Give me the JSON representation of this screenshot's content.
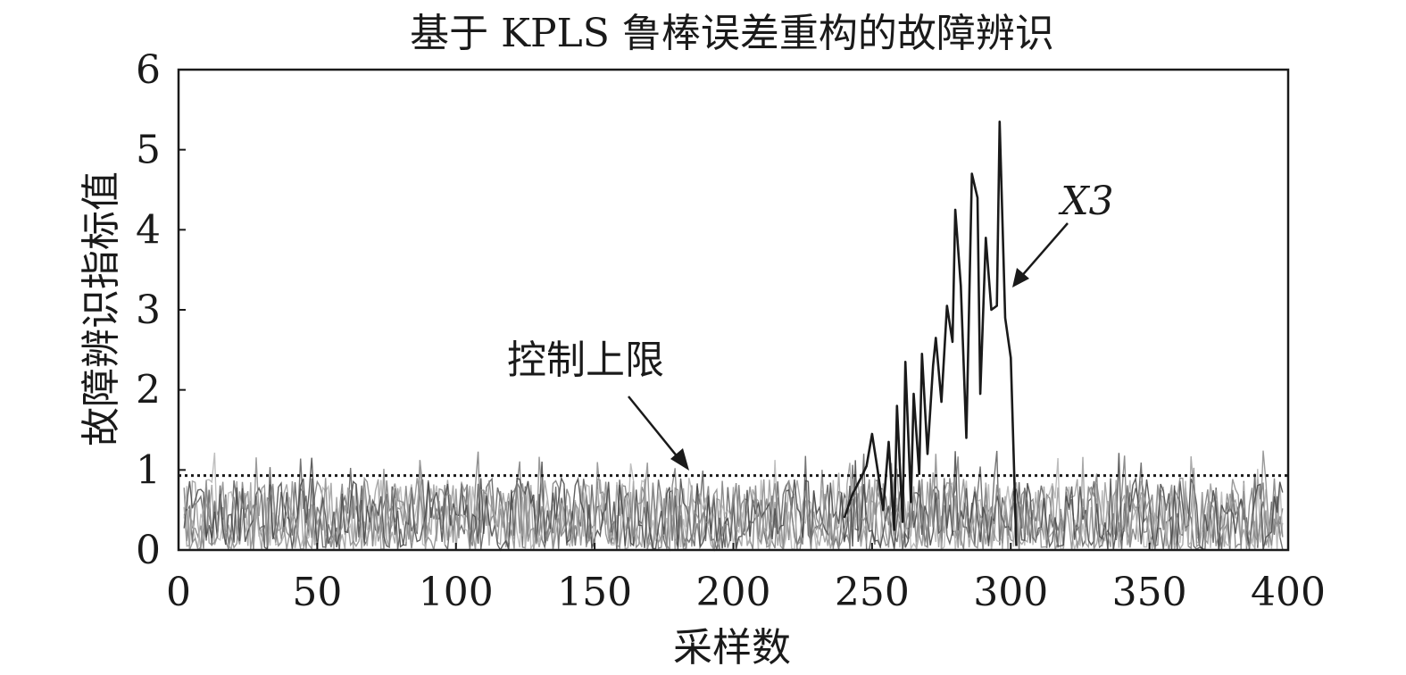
{
  "chart_data": {
    "type": "line",
    "title": "基于 KPLS 鲁棒误差重构的故障辨识",
    "xlabel": "采样数",
    "ylabel": "故障辨识指标值",
    "xlim": [
      0,
      400
    ],
    "ylim": [
      0,
      6
    ],
    "xticks": [
      "0",
      "50",
      "100",
      "150",
      "200",
      "250",
      "300",
      "350",
      "400"
    ],
    "yticks": [
      "0",
      "1",
      "2",
      "3",
      "4",
      "5",
      "6"
    ],
    "grid": false,
    "control_limit": {
      "label": "控制上限",
      "value": 0.93
    },
    "highlighted_series": {
      "label": "X3",
      "color": "#1a1a1a",
      "x": [
        240,
        243,
        246,
        248,
        250,
        252,
        254,
        256,
        258,
        259,
        261,
        262,
        264,
        265,
        267,
        268,
        270,
        272,
        273,
        275,
        277,
        279,
        280,
        282,
        284,
        286,
        288,
        289,
        291,
        293,
        295,
        296,
        298,
        300,
        302
      ],
      "values": [
        0.4,
        0.7,
        0.9,
        1.05,
        1.45,
        1.0,
        0.5,
        1.35,
        0.25,
        1.8,
        0.35,
        2.35,
        0.6,
        1.95,
        0.95,
        2.45,
        1.2,
        2.3,
        2.65,
        1.85,
        3.05,
        2.6,
        4.25,
        3.3,
        1.4,
        4.7,
        4.4,
        1.95,
        3.9,
        3.0,
        3.05,
        5.35,
        2.9,
        2.4,
        0.05
      ]
    },
    "background_series": [
      {
        "color": "#5a5a5a"
      },
      {
        "color": "#7a7a7a"
      },
      {
        "color": "#9a9a9a"
      },
      {
        "color": "#b3b3b3"
      },
      {
        "color": "#444444"
      },
      {
        "color": "#8a8a8a"
      }
    ]
  }
}
